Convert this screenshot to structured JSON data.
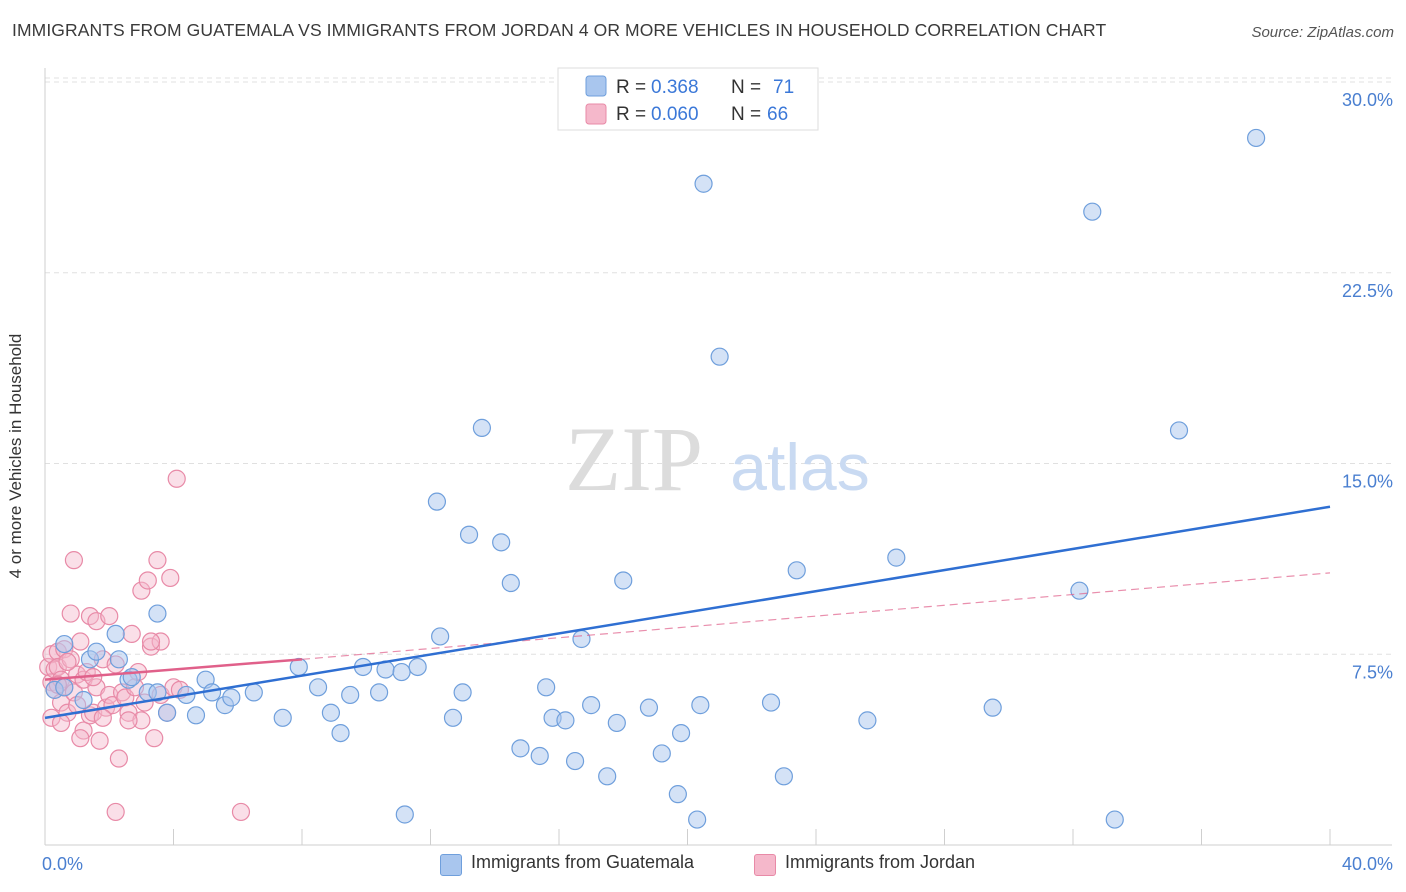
{
  "title": "IMMIGRANTS FROM GUATEMALA VS IMMIGRANTS FROM JORDAN 4 OR MORE VEHICLES IN HOUSEHOLD CORRELATION CHART",
  "source": "Source: ZipAtlas.com",
  "watermark": {
    "zip": "ZIP",
    "atlas": "atlas"
  },
  "colors": {
    "blue_fill": "#a9c6ee",
    "blue_stroke": "#6f9fdc",
    "blue_line": "#2f6fd2",
    "pink_fill": "#f5b8cb",
    "pink_stroke": "#e88aa7",
    "pink_line": "#e0608a",
    "tick_label": "#4a7fd0",
    "grid": "#e0e0e0"
  },
  "legend": {
    "r_label": "R =",
    "n_label": "N =",
    "rows": [
      {
        "r": "0.368",
        "n": "71",
        "color": "blue"
      },
      {
        "r": "0.060",
        "n": "66",
        "color": "pink"
      }
    ]
  },
  "bottom_legend": [
    {
      "label": "Immigrants from Guatemala",
      "color": "blue"
    },
    {
      "label": "Immigrants from Jordan",
      "color": "pink"
    }
  ],
  "chart_data": {
    "type": "scatter",
    "title": "IMMIGRANTS FROM GUATEMALA VS IMMIGRANTS FROM JORDAN 4 OR MORE VEHICLES IN HOUSEHOLD CORRELATION CHART",
    "xlabel": "",
    "ylabel": "4 or more Vehicles in Household",
    "xlim": [
      0,
      40
    ],
    "ylim": [
      0,
      30
    ],
    "x_tick_labels": [
      "0.0%",
      "40.0%"
    ],
    "y_ticks": [
      7.5,
      15.0,
      22.5,
      30.0
    ],
    "y_tick_labels": [
      "7.5%",
      "15.0%",
      "22.5%",
      "30.0%"
    ],
    "grid": true,
    "legend_position": "top-center",
    "series": [
      {
        "name": "Immigrants from Guatemala",
        "color": "blue",
        "trend": {
          "x": [
            0,
            40
          ],
          "y": [
            5.0,
            13.3
          ],
          "style": "solid"
        },
        "points": [
          [
            0.3,
            6.1
          ],
          [
            0.6,
            7.9
          ],
          [
            0.6,
            6.2
          ],
          [
            1.4,
            7.3
          ],
          [
            1.2,
            5.7
          ],
          [
            1.6,
            7.6
          ],
          [
            2.3,
            7.3
          ],
          [
            2.2,
            8.3
          ],
          [
            2.6,
            6.5
          ],
          [
            2.7,
            6.6
          ],
          [
            3.5,
            9.1
          ],
          [
            3.2,
            6.0
          ],
          [
            3.8,
            5.2
          ],
          [
            3.5,
            6.0
          ],
          [
            4.4,
            5.9
          ],
          [
            4.7,
            5.1
          ],
          [
            5.0,
            6.5
          ],
          [
            5.2,
            6.0
          ],
          [
            5.6,
            5.5
          ],
          [
            5.8,
            5.8
          ],
          [
            6.5,
            6.0
          ],
          [
            7.4,
            5.0
          ],
          [
            7.9,
            7.0
          ],
          [
            8.5,
            6.2
          ],
          [
            8.9,
            5.2
          ],
          [
            9.2,
            4.4
          ],
          [
            9.5,
            5.9
          ],
          [
            10.4,
            6.0
          ],
          [
            9.9,
            7.0
          ],
          [
            10.6,
            6.9
          ],
          [
            11.1,
            6.8
          ],
          [
            11.6,
            7.0
          ],
          [
            11.2,
            1.2
          ],
          [
            12.3,
            8.2
          ],
          [
            12.7,
            5.0
          ],
          [
            13.0,
            6.0
          ],
          [
            13.6,
            16.4
          ],
          [
            13.2,
            12.2
          ],
          [
            14.2,
            11.9
          ],
          [
            14.5,
            10.3
          ],
          [
            15.6,
            6.2
          ],
          [
            14.8,
            3.8
          ],
          [
            15.4,
            3.5
          ],
          [
            15.8,
            5.0
          ],
          [
            16.2,
            4.9
          ],
          [
            16.5,
            3.3
          ],
          [
            17.0,
            5.5
          ],
          [
            16.7,
            8.1
          ],
          [
            17.5,
            2.7
          ],
          [
            18.0,
            10.4
          ],
          [
            17.8,
            4.8
          ],
          [
            18.8,
            5.4
          ],
          [
            19.2,
            3.6
          ],
          [
            19.7,
            2.0
          ],
          [
            19.8,
            4.4
          ],
          [
            20.3,
            1.0
          ],
          [
            20.5,
            26.0
          ],
          [
            20.4,
            5.5
          ],
          [
            21.0,
            19.2
          ],
          [
            22.6,
            5.6
          ],
          [
            23.0,
            2.7
          ],
          [
            23.4,
            10.8
          ],
          [
            25.6,
            4.9
          ],
          [
            26.5,
            11.3
          ],
          [
            29.5,
            5.4
          ],
          [
            32.2,
            10.0
          ],
          [
            33.3,
            1.0
          ],
          [
            32.6,
            24.9
          ],
          [
            35.3,
            16.3
          ],
          [
            37.7,
            27.8
          ],
          [
            12.2,
            13.5
          ]
        ]
      },
      {
        "name": "Immigrants from Jordan",
        "color": "pink",
        "trend": {
          "x": [
            0,
            8.0
          ],
          "y": [
            6.5,
            7.3
          ],
          "style": "solid",
          "extension": {
            "x": [
              8.0,
              40
            ],
            "y": [
              7.3,
              10.7
            ],
            "style": "dashed"
          }
        },
        "points": [
          [
            0.1,
            7.0
          ],
          [
            0.2,
            6.4
          ],
          [
            0.2,
            7.5
          ],
          [
            0.3,
            6.9
          ],
          [
            0.3,
            6.1
          ],
          [
            0.4,
            7.6
          ],
          [
            0.4,
            7.0
          ],
          [
            0.5,
            6.5
          ],
          [
            0.5,
            5.6
          ],
          [
            0.6,
            7.7
          ],
          [
            0.6,
            6.2
          ],
          [
            0.7,
            5.2
          ],
          [
            0.8,
            9.1
          ],
          [
            0.8,
            7.3
          ],
          [
            0.9,
            6.0
          ],
          [
            1.0,
            6.7
          ],
          [
            1.0,
            5.5
          ],
          [
            1.1,
            8.0
          ],
          [
            1.2,
            6.5
          ],
          [
            1.2,
            4.5
          ],
          [
            1.3,
            6.8
          ],
          [
            1.4,
            9.0
          ],
          [
            1.4,
            5.1
          ],
          [
            1.5,
            5.2
          ],
          [
            1.6,
            8.8
          ],
          [
            1.6,
            6.2
          ],
          [
            1.7,
            4.1
          ],
          [
            1.8,
            7.3
          ],
          [
            1.9,
            5.4
          ],
          [
            2.0,
            9.0
          ],
          [
            2.0,
            5.9
          ],
          [
            2.1,
            5.5
          ],
          [
            2.2,
            7.1
          ],
          [
            2.3,
            3.4
          ],
          [
            2.4,
            6.0
          ],
          [
            2.5,
            5.8
          ],
          [
            2.6,
            5.2
          ],
          [
            2.7,
            8.3
          ],
          [
            2.8,
            6.2
          ],
          [
            3.0,
            10.0
          ],
          [
            3.0,
            4.9
          ],
          [
            3.1,
            5.6
          ],
          [
            3.2,
            10.4
          ],
          [
            3.3,
            7.8
          ],
          [
            3.4,
            4.2
          ],
          [
            3.5,
            11.2
          ],
          [
            3.6,
            8.0
          ],
          [
            3.6,
            5.9
          ],
          [
            3.8,
            5.2
          ],
          [
            3.9,
            10.5
          ],
          [
            4.0,
            6.2
          ],
          [
            4.1,
            14.4
          ],
          [
            4.2,
            6.1
          ],
          [
            0.9,
            11.2
          ],
          [
            2.2,
            1.3
          ],
          [
            6.1,
            1.3
          ],
          [
            0.2,
            5.0
          ],
          [
            0.5,
            4.8
          ],
          [
            1.1,
            4.2
          ],
          [
            1.8,
            5.0
          ],
          [
            2.6,
            4.9
          ],
          [
            3.3,
            8.0
          ],
          [
            0.7,
            7.2
          ],
          [
            1.5,
            6.6
          ],
          [
            2.9,
            6.8
          ],
          [
            0.4,
            6.3
          ]
        ]
      }
    ]
  }
}
